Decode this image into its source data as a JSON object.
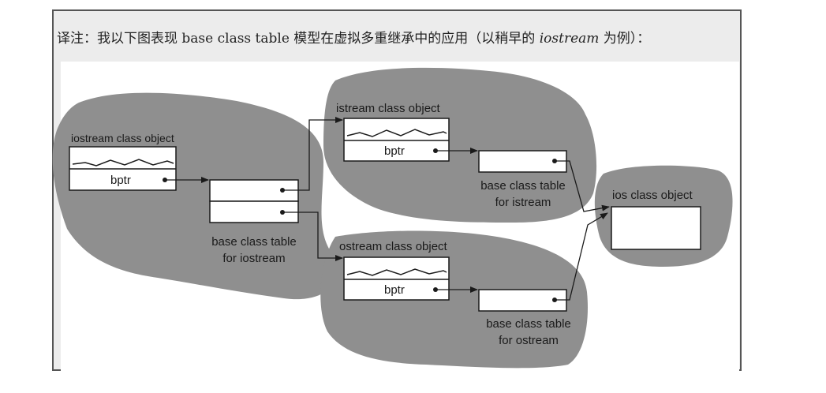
{
  "caption": {
    "prefix": "译注：我以下图表现 base class table 模型在虚拟多重继承中的应用（以稍早的 ",
    "em": "iostream",
    "suffix": " 为例）："
  },
  "diagram": {
    "iostream_object_label": "iostream class object",
    "istream_object_label": "istream class object",
    "ostream_object_label": "ostream class object",
    "ios_object_label": "ios class object",
    "bptr_label": "bptr",
    "iostream_table_label": [
      "base class table",
      "for iostream"
    ],
    "istream_table_label": [
      "base class table",
      "for istream"
    ],
    "ostream_table_label": [
      "base class table",
      "for ostream"
    ]
  },
  "colors": {
    "blob": "#8f8f8f",
    "box_fill": "#ffffff",
    "stroke": "#1a1a1a"
  }
}
